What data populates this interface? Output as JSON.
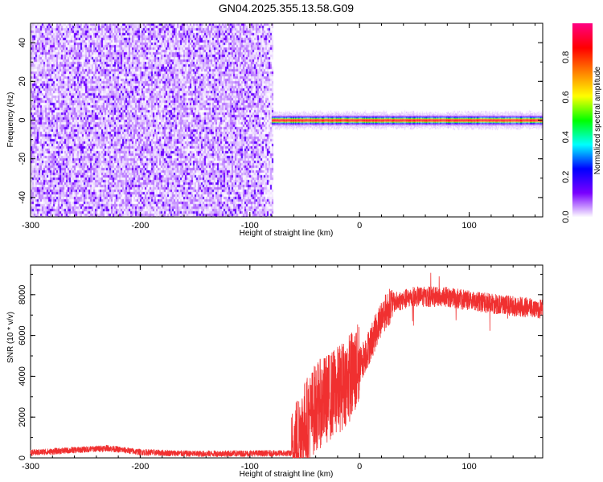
{
  "title": "GN04.2025.355.13.58.G09",
  "chart_data": [
    {
      "type": "heatmap",
      "title": "GN04.2025.355.13.58.G09",
      "xlabel": "Height of straight line (km)",
      "ylabel": "Frequency (Hz)",
      "xlim": [
        -300,
        167
      ],
      "ylim": [
        -50,
        50
      ],
      "xticks": [
        -300,
        -200,
        -100,
        0,
        100
      ],
      "yticks": [
        -40,
        -20,
        0,
        20,
        40
      ],
      "noise_region_x": [
        -300,
        -80
      ],
      "signal_region_x": [
        -80,
        167
      ],
      "signal_frequency_hz": 0,
      "colorbar": {
        "label": "Normalized spectral amplitude",
        "range": [
          0,
          0.97
        ],
        "ticks": [
          "0.0",
          "0.2",
          "0.4",
          "0.6",
          "0.8"
        ],
        "colormap": [
          "#ffffff",
          "#7a00ff",
          "#0000ff",
          "#00ffff",
          "#00ff00",
          "#ffff00",
          "#ff8000",
          "#ff0000",
          "#ff0080"
        ]
      }
    },
    {
      "type": "line",
      "xlabel": "Height of straight line (km)",
      "ylabel": "SNR (10 * v/v)",
      "xlim": [
        -300,
        167
      ],
      "ylim": [
        0,
        9450
      ],
      "xticks": [
        -300,
        -200,
        -100,
        0,
        100
      ],
      "yticks": [
        0,
        2000,
        4000,
        6000,
        8000
      ],
      "color": "#f03030",
      "series": [
        {
          "name": "SNR",
          "x": [
            -300,
            -230,
            -200,
            -150,
            -100,
            -62,
            -55,
            -40,
            -20,
            0,
            10,
            20,
            30,
            50,
            80,
            100,
            130,
            167
          ],
          "y": [
            250,
            480,
            280,
            200,
            220,
            220,
            1200,
            2500,
            3300,
            4500,
            5600,
            6900,
            7600,
            7900,
            7900,
            7700,
            7500,
            7300
          ]
        }
      ]
    }
  ]
}
